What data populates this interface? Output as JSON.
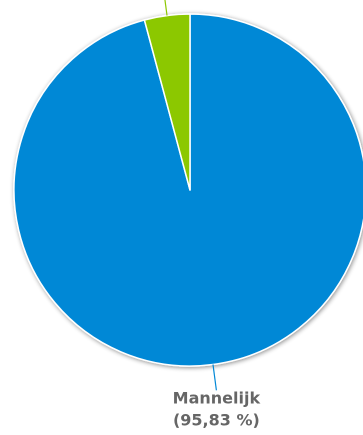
{
  "chart_data": {
    "type": "pie",
    "title": "",
    "slices": [
      {
        "name": "Mannelijk",
        "percent": 95.83,
        "percent_label": "(95,83 %)",
        "color": "#0288d6",
        "label_visible": true
      },
      {
        "name": "",
        "percent": 4.17,
        "percent_label": "",
        "color": "#8cc800",
        "label_visible": false
      }
    ],
    "start_angle_deg": -90,
    "direction": "clockwise",
    "legend": "none"
  }
}
